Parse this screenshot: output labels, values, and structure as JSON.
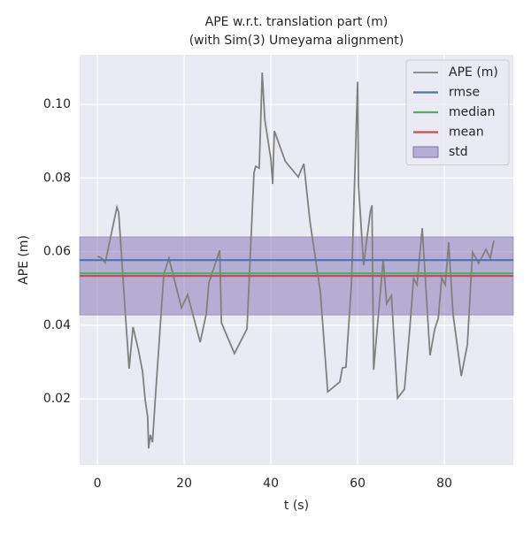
{
  "chart_data": {
    "type": "line",
    "title": "APE w.r.t. translation part (m)",
    "subtitle": "(with Sim(3) Umeyama alignment)",
    "xlabel": "t (s)",
    "ylabel": "APE (m)",
    "xlim": [
      -4.1,
      95.9
    ],
    "ylim": [
      0.002,
      0.1135
    ],
    "xticks": [
      0,
      20,
      40,
      60,
      80
    ],
    "yticks": [
      0.02,
      0.04,
      0.06,
      0.08,
      {
        "value": 0.1,
        "label": "0.10"
      }
    ],
    "grid": true,
    "legend": "upper right",
    "series": [
      {
        "name": "APE (m)",
        "color": "#808080",
        "x": [
          0,
          0.8,
          1.8,
          4.5,
          4.9,
          6.1,
          7.3,
          8.2,
          9.4,
          10.4,
          11.0,
          11.6,
          11.8,
          12.2,
          12.7,
          13.5,
          15.3,
          16.5,
          19.4,
          20.8,
          23.7,
          25.1,
          25.7,
          28.2,
          28.6,
          31.6,
          34.5,
          36.1,
          36.5,
          37.3,
          38.0,
          38.6,
          40.0,
          40.4,
          40.8,
          43.3,
          46.3,
          47.6,
          49.0,
          51.4,
          53.1,
          55.9,
          56.5,
          57.3,
          58.6,
          60.0,
          60.2,
          61.4,
          62.9,
          63.3,
          63.7,
          65.9,
          66.7,
          67.8,
          69.2,
          70.8,
          72.0,
          72.9,
          73.7,
          74.9,
          76.7,
          77.8,
          78.6,
          79.4,
          80.2,
          81.0,
          82.0,
          83.9,
          85.3,
          86.5,
          87.9,
          89.6,
          90.6,
          91.4
        ],
        "values": [
          0.0587,
          0.0584,
          0.057,
          0.0721,
          0.0707,
          0.049,
          0.0282,
          0.0395,
          0.0335,
          0.0274,
          0.0198,
          0.015,
          0.0065,
          0.0102,
          0.0082,
          0.0226,
          0.0539,
          0.0582,
          0.0447,
          0.0483,
          0.0354,
          0.0431,
          0.0515,
          0.0604,
          0.0407,
          0.0323,
          0.039,
          0.0815,
          0.0832,
          0.0827,
          0.1087,
          0.0959,
          0.0851,
          0.0784,
          0.0928,
          0.0846,
          0.0803,
          0.0839,
          0.0683,
          0.0491,
          0.0219,
          0.0246,
          0.0284,
          0.0286,
          0.0515,
          0.1062,
          0.0779,
          0.0563,
          0.0707,
          0.0726,
          0.0279,
          0.058,
          0.0459,
          0.0481,
          0.0202,
          0.0226,
          0.0387,
          0.0527,
          0.051,
          0.0664,
          0.0318,
          0.039,
          0.0419,
          0.0529,
          0.051,
          0.0625,
          0.0431,
          0.0262,
          0.0347,
          0.0599,
          0.0568,
          0.0606,
          0.0582,
          0.063
        ]
      }
    ],
    "hlines": [
      {
        "name": "rmse",
        "color": "#4c72b0",
        "value": 0.0577
      },
      {
        "name": "median",
        "color": "#55a868",
        "value": 0.0541
      },
      {
        "name": "mean",
        "color": "#c44e52",
        "value": 0.0534
      }
    ],
    "band": {
      "name": "std",
      "color": "#8172b2",
      "value": 0.0106
    }
  }
}
